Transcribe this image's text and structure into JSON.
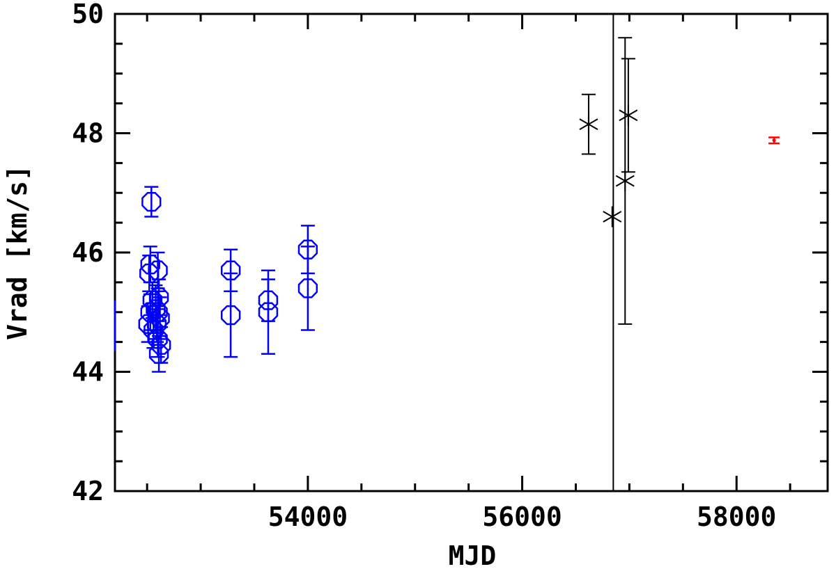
{
  "chart_data": {
    "type": "scatter",
    "title": "",
    "xlabel": "MJD",
    "ylabel": "Vrad [km/s]",
    "xlim": [
      52200,
      58850
    ],
    "ylim": [
      42,
      50
    ],
    "x_ticks": [
      54000,
      56000,
      58000
    ],
    "x_tick_labels": [
      "54000",
      "56000",
      "58000"
    ],
    "y_ticks": [
      42,
      44,
      46,
      48,
      50
    ],
    "y_tick_labels": [
      "42",
      "44",
      "46",
      "48",
      "50"
    ],
    "grid": false,
    "legend": "none",
    "vertical_line_x": 56850,
    "series": [
      {
        "marker": "octagon",
        "color": "#0000ff",
        "points": [
          {
            "x": 52540,
            "y": 46.85,
            "err": 0.25
          },
          {
            "x": 52530,
            "y": 45.8,
            "err": 0.3
          },
          {
            "x": 52520,
            "y": 45.65,
            "err": 0.3
          },
          {
            "x": 52550,
            "y": 45.2,
            "err": 0.3
          },
          {
            "x": 52530,
            "y": 45.0,
            "err": 0.3
          },
          {
            "x": 52510,
            "y": 44.8,
            "err": 0.3
          },
          {
            "x": 52560,
            "y": 44.7,
            "err": 0.3
          },
          {
            "x": 52600,
            "y": 45.7,
            "err": 0.3
          },
          {
            "x": 52610,
            "y": 45.25,
            "err": 0.3
          },
          {
            "x": 52600,
            "y": 45.0,
            "err": 0.35
          },
          {
            "x": 52620,
            "y": 44.9,
            "err": 0.35
          },
          {
            "x": 52590,
            "y": 44.8,
            "err": 0.3
          },
          {
            "x": 52600,
            "y": 44.55,
            "err": 0.3
          },
          {
            "x": 52630,
            "y": 44.45,
            "err": 0.3
          },
          {
            "x": 52610,
            "y": 44.3,
            "err": 0.3
          },
          {
            "x": 52580,
            "y": 45.05,
            "err": 0.4
          },
          {
            "x": 53280,
            "y": 45.7,
            "err": 0.35
          },
          {
            "x": 53280,
            "y": 44.95,
            "err": 0.7
          },
          {
            "x": 53630,
            "y": 45.2,
            "err": 0.35
          },
          {
            "x": 53630,
            "y": 45.0,
            "err": 0.7
          },
          {
            "x": 54000,
            "y": 46.05,
            "err": 0.4
          },
          {
            "x": 54000,
            "y": 45.4,
            "err": 0.7
          }
        ]
      },
      {
        "marker": "asterisk",
        "color": "#000000",
        "points": [
          {
            "x": 56620,
            "y": 48.15,
            "err": 0.5
          },
          {
            "x": 56840,
            "y": 46.6,
            "err": null
          },
          {
            "x": 56960,
            "y": 47.2,
            "err": 2.4
          },
          {
            "x": 56990,
            "y": 48.3,
            "err": 0.95
          }
        ]
      },
      {
        "marker": "dot",
        "color": "#ff0000",
        "points": [
          {
            "x": 58350,
            "y": 47.88,
            "err": 0.05
          }
        ]
      }
    ]
  }
}
